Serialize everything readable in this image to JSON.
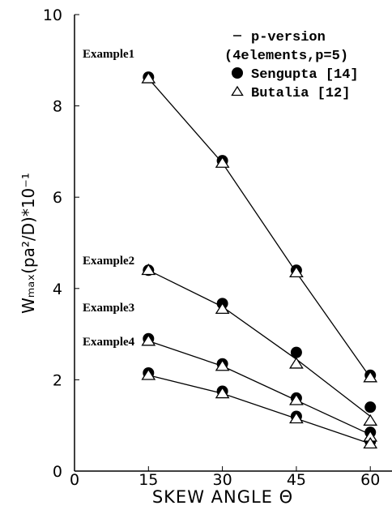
{
  "chart_data": {
    "type": "line",
    "xlabel": "SKEW ANGLE Θ",
    "ylabel": "Wₘₐₓ(pa²/D)*10⁻¹",
    "x": [
      15,
      30,
      45,
      60
    ],
    "xlim": [
      0,
      64.4
    ],
    "xticks": [
      0,
      15,
      30,
      45,
      60
    ],
    "ylim": [
      0,
      10
    ],
    "yticks": [
      0,
      2,
      4,
      6,
      8,
      10
    ],
    "annotations": [
      "Example1",
      "Example2",
      "Example3",
      "Example4"
    ],
    "legend_note": "(4elements,p=5)",
    "series": [
      {
        "name": "p-version",
        "marker": "line",
        "color": "#000000",
        "values": [
          [
            8.6,
            6.75,
            4.35,
            2.05
          ],
          [
            4.4,
            3.6,
            2.45,
            1.2
          ],
          [
            2.85,
            2.3,
            1.55,
            0.8
          ],
          [
            2.1,
            1.7,
            1.15,
            0.6
          ]
        ]
      },
      {
        "name": "Sengupta [14]",
        "marker": "circle",
        "color": "#000000",
        "values": [
          [
            8.63,
            6.8,
            4.4,
            2.1
          ],
          [
            4.4,
            3.67,
            2.6,
            1.4
          ],
          [
            2.9,
            2.35,
            1.6,
            0.85
          ],
          [
            2.15,
            1.75,
            1.2,
            0.65
          ]
        ]
      },
      {
        "name": "Butalia [12]",
        "marker": "triangle",
        "color": "#000000",
        "values": [
          [
            8.6,
            6.75,
            4.35,
            2.05
          ],
          [
            4.4,
            3.55,
            2.35,
            1.1
          ],
          [
            2.85,
            2.3,
            1.55,
            0.75
          ],
          [
            2.1,
            1.7,
            1.15,
            0.6
          ]
        ]
      }
    ]
  }
}
